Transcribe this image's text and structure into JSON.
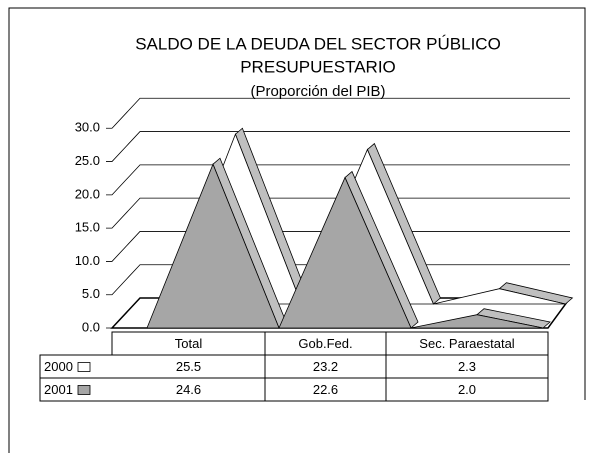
{
  "chart_data": {
    "type": "area3d",
    "title": "SALDO DE LA DEUDA DEL SECTOR PÚBLICO",
    "subtitle": "PRESUPUESTARIO",
    "note": "(Proporción del PIB)",
    "categories": [
      "Total",
      "Gob.Fed.",
      "Sec. Paraestatal"
    ],
    "series": [
      {
        "name": "2000",
        "color": "#ffffff",
        "values": [
          25.5,
          23.2,
          2.3
        ]
      },
      {
        "name": "2001",
        "color": "#a6a6a6",
        "values": [
          24.6,
          22.6,
          2.0
        ],
        "value_labels": [
          "24.6",
          "22.6",
          "2.0"
        ]
      }
    ],
    "ylim": [
      0,
      35
    ],
    "yticks": [
      {
        "value": 0,
        "label": "0.0"
      },
      {
        "value": 5,
        "label": "5.0"
      },
      {
        "value": 10,
        "label": "10.0"
      },
      {
        "value": 15,
        "label": "15.0"
      },
      {
        "value": 20,
        "label": "20.0"
      },
      {
        "value": 25,
        "label": "25.0"
      },
      {
        "value": 30,
        "label": "30.0"
      }
    ],
    "grid": true
  }
}
